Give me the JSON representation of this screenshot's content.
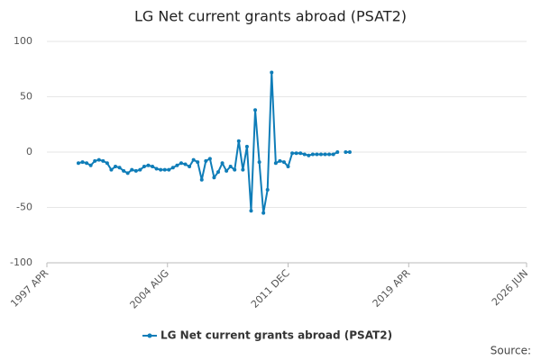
{
  "chart_data": {
    "type": "line",
    "title": "LG Net current grants abroad (PSAT2)",
    "x": [
      "1999 MAR",
      "1999 JUN",
      "1999 SEP",
      "1999 DEC",
      "2000 MAR",
      "2000 JUN",
      "2000 SEP",
      "2000 DEC",
      "2001 MAR",
      "2001 JUN",
      "2001 SEP",
      "2001 DEC",
      "2002 MAR",
      "2002 JUN",
      "2002 SEP",
      "2002 DEC",
      "2003 MAR",
      "2003 JUN",
      "2003 SEP",
      "2003 DEC",
      "2004 MAR",
      "2004 JUN",
      "2004 SEP",
      "2004 DEC",
      "2005 MAR",
      "2005 JUN",
      "2005 SEP",
      "2005 DEC",
      "2006 MAR",
      "2006 JUN",
      "2006 SEP",
      "2006 DEC",
      "2007 MAR",
      "2007 JUN",
      "2007 SEP",
      "2007 DEC",
      "2008 MAR",
      "2008 JUN",
      "2008 SEP",
      "2008 DEC",
      "2009 MAR",
      "2009 JUN",
      "2009 SEP",
      "2009 DEC",
      "2010 MAR",
      "2010 JUN",
      "2010 SEP",
      "2010 DEC",
      "2011 MAR",
      "2011 JUN",
      "2011 SEP",
      "2011 DEC",
      "2012 MAR",
      "2012 JUN",
      "2012 SEP",
      "2012 DEC",
      "2013 MAR",
      "2013 JUN",
      "2013 SEP",
      "2013 DEC",
      "2014 MAR",
      "2014 JUN",
      "2014 SEP",
      "2014 DEC",
      "2015 MAR",
      "2015 JUN",
      "2015 SEP"
    ],
    "series": [
      {
        "name": "LG Net current grants abroad (PSAT2)",
        "color": "#0f7db8",
        "values": [
          -10,
          -9,
          -10,
          -12,
          -8,
          -7,
          -8,
          -10,
          -16,
          -13,
          -14,
          -17,
          -19,
          -16,
          -17,
          -16,
          -13,
          -12,
          -13,
          -15,
          -16,
          -16,
          -16,
          -14,
          -12,
          -10,
          -11,
          -13,
          -7,
          -9,
          -25,
          -8,
          -6,
          -23,
          -18,
          -10,
          -17,
          -13,
          -16,
          10,
          -16,
          5,
          -53,
          38,
          -9,
          -55,
          -34,
          72,
          -10,
          -8,
          -9,
          -13,
          -1,
          -1,
          -1,
          -2,
          -3,
          -2,
          -2,
          -2,
          -2,
          -2,
          -2,
          0,
          null,
          0,
          0
        ]
      }
    ],
    "xlim": [
      "1997 APR",
      "2026 JUN"
    ],
    "xticks": [
      "1997 APR",
      "2004 AUG",
      "2011 DEC",
      "2019 APR",
      "2026 JUN"
    ],
    "ylim": [
      -100,
      100
    ],
    "yticks": [
      -100,
      -50,
      0,
      50,
      100
    ],
    "grid": true,
    "legend": "bottom",
    "source": "Source:"
  }
}
